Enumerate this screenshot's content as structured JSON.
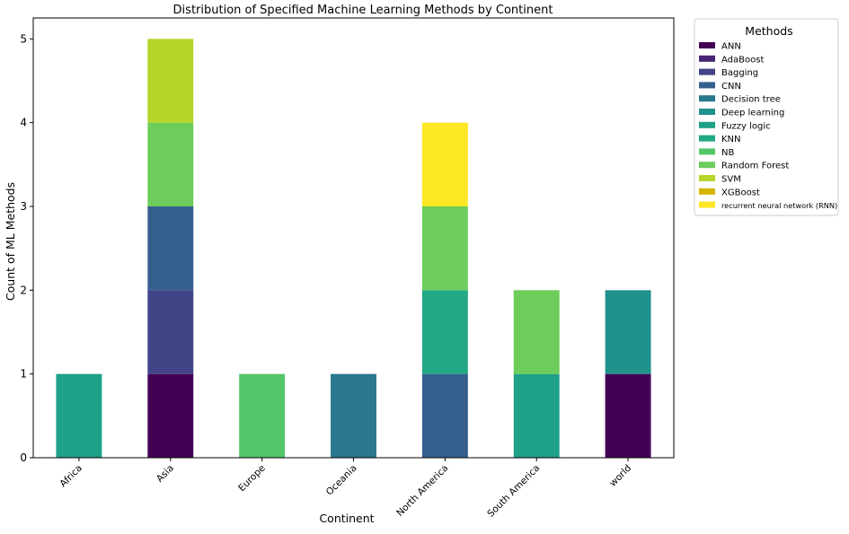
{
  "chart_data": {
    "type": "bar",
    "stacked": true,
    "title": "Distribution of Specified Machine Learning Methods by Continent",
    "xlabel": "Continent",
    "ylabel": "Count of ML Methods",
    "ylim": [
      0,
      5.25
    ],
    "yticks": [
      0,
      1,
      2,
      3,
      4,
      5
    ],
    "grid": false,
    "legend_title": "Methods",
    "legend_position": "outside-right-top",
    "categories": [
      "Africa",
      "Asia",
      "Europe",
      "Oceania",
      "North America",
      "South America",
      "world"
    ],
    "series": [
      {
        "name": "ANN",
        "color": "#440154",
        "values": [
          0,
          1,
          0,
          0,
          0,
          0,
          1
        ]
      },
      {
        "name": "AdaBoost",
        "color": "#482475",
        "values": [
          0,
          0,
          0,
          0,
          0,
          0,
          0
        ]
      },
      {
        "name": "Bagging",
        "color": "#414487",
        "values": [
          0,
          1,
          0,
          0,
          0,
          0,
          0
        ]
      },
      {
        "name": "CNN",
        "color": "#355f8d",
        "values": [
          0,
          1,
          0,
          0,
          1,
          0,
          0
        ]
      },
      {
        "name": "Decision tree",
        "color": "#2a788e",
        "values": [
          0,
          0,
          0,
          1,
          0,
          0,
          0
        ]
      },
      {
        "name": "Deep learning",
        "color": "#21918c",
        "values": [
          0,
          0,
          0,
          0,
          0,
          0,
          1
        ]
      },
      {
        "name": "Fuzzy logic",
        "color": "#1fa088",
        "values": [
          1,
          0,
          0,
          0,
          0,
          1,
          0
        ]
      },
      {
        "name": "KNN",
        "color": "#22a884",
        "values": [
          0,
          0,
          0,
          0,
          1,
          0,
          0
        ]
      },
      {
        "name": "NB",
        "color": "#54c568",
        "values": [
          0,
          0,
          1,
          0,
          0,
          0,
          0
        ]
      },
      {
        "name": "Random Forest",
        "color": "#6ccd5a",
        "values": [
          0,
          1,
          0,
          0,
          1,
          1,
          0
        ]
      },
      {
        "name": "SVM",
        "color": "#b5d52b",
        "values": [
          0,
          1,
          0,
          0,
          0,
          0,
          0
        ]
      },
      {
        "name": "XGBoost",
        "color": "#d4b400",
        "values": [
          0,
          0,
          0,
          0,
          0,
          0,
          0
        ]
      },
      {
        "name": "recurrent neural network (RNN)",
        "color": "#fde725",
        "values": [
          0,
          0,
          0,
          0,
          1,
          0,
          0
        ]
      }
    ]
  }
}
